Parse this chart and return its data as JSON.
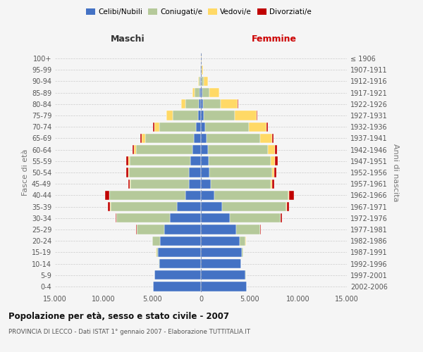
{
  "age_groups": [
    "0-4",
    "5-9",
    "10-14",
    "15-19",
    "20-24",
    "25-29",
    "30-34",
    "35-39",
    "40-44",
    "45-49",
    "50-54",
    "55-59",
    "60-64",
    "65-69",
    "70-74",
    "75-79",
    "80-84",
    "85-89",
    "90-94",
    "95-99",
    "100+"
  ],
  "birth_years": [
    "2002-2006",
    "1997-2001",
    "1992-1996",
    "1987-1991",
    "1982-1986",
    "1977-1981",
    "1972-1976",
    "1967-1971",
    "1962-1966",
    "1957-1961",
    "1952-1956",
    "1947-1951",
    "1942-1946",
    "1937-1941",
    "1932-1936",
    "1927-1931",
    "1922-1926",
    "1917-1921",
    "1912-1916",
    "1907-1911",
    "≤ 1906"
  ],
  "colors": {
    "celibi": "#4472c4",
    "coniugati": "#b5c99a",
    "vedovi": "#ffd966",
    "divorziati": "#c00000",
    "bg": "#f5f5f5",
    "grid": "#cccccc",
    "dashed_line": "#8899bb"
  },
  "maschi": {
    "celibi": [
      4900,
      4800,
      4300,
      4400,
      4200,
      3800,
      3200,
      2500,
      1600,
      1250,
      1200,
      1100,
      900,
      700,
      500,
      320,
      200,
      150,
      90,
      50,
      20
    ],
    "coniugati": [
      5,
      5,
      30,
      200,
      800,
      2800,
      5500,
      6800,
      7800,
      6000,
      6200,
      6200,
      5800,
      5000,
      3800,
      2600,
      1400,
      500,
      120,
      30,
      5
    ],
    "vedovi": [
      0,
      0,
      0,
      5,
      5,
      10,
      20,
      40,
      50,
      50,
      100,
      150,
      200,
      400,
      500,
      600,
      400,
      200,
      80,
      20,
      5
    ],
    "divorziati": [
      0,
      0,
      0,
      5,
      10,
      30,
      80,
      200,
      400,
      180,
      200,
      200,
      150,
      120,
      100,
      50,
      20,
      10,
      5,
      0,
      0
    ]
  },
  "femmine": {
    "celibi": [
      4700,
      4600,
      4100,
      4200,
      4000,
      3600,
      3000,
      2200,
      1400,
      1000,
      900,
      800,
      700,
      600,
      450,
      300,
      200,
      150,
      100,
      50,
      20
    ],
    "coniugati": [
      5,
      5,
      20,
      150,
      600,
      2500,
      5200,
      6600,
      7600,
      6200,
      6400,
      6400,
      6200,
      5500,
      4500,
      3200,
      1800,
      700,
      200,
      40,
      5
    ],
    "vedovi": [
      0,
      0,
      0,
      5,
      5,
      10,
      20,
      50,
      80,
      100,
      200,
      400,
      700,
      1200,
      1800,
      2200,
      1800,
      1000,
      400,
      120,
      30
    ],
    "divorziati": [
      0,
      0,
      0,
      5,
      10,
      30,
      80,
      200,
      500,
      250,
      280,
      280,
      200,
      150,
      120,
      80,
      40,
      20,
      5,
      0,
      0
    ]
  },
  "xlim": 15000,
  "xticks": [
    -15000,
    -10000,
    -5000,
    0,
    5000,
    10000,
    15000
  ],
  "xticklabels": [
    "15.000",
    "10.000",
    "5.000",
    "0",
    "5.000",
    "10.000",
    "15.000"
  ],
  "title": "Popolazione per età, sesso e stato civile - 2007",
  "subtitle": "PROVINCIA DI LECCO - Dati ISTAT 1° gennaio 2007 - Elaborazione TUTTITALIA.IT",
  "ylabel_left": "Fasce di età",
  "ylabel_right": "Anni di nascita",
  "legend_labels": [
    "Celibi/Nubili",
    "Coniugati/e",
    "Vedovi/e",
    "Divorziati/e"
  ],
  "maschi_label": "Maschi",
  "femmine_label": "Femmine",
  "maschi_color": "#333333",
  "femmine_color": "#cc0000"
}
